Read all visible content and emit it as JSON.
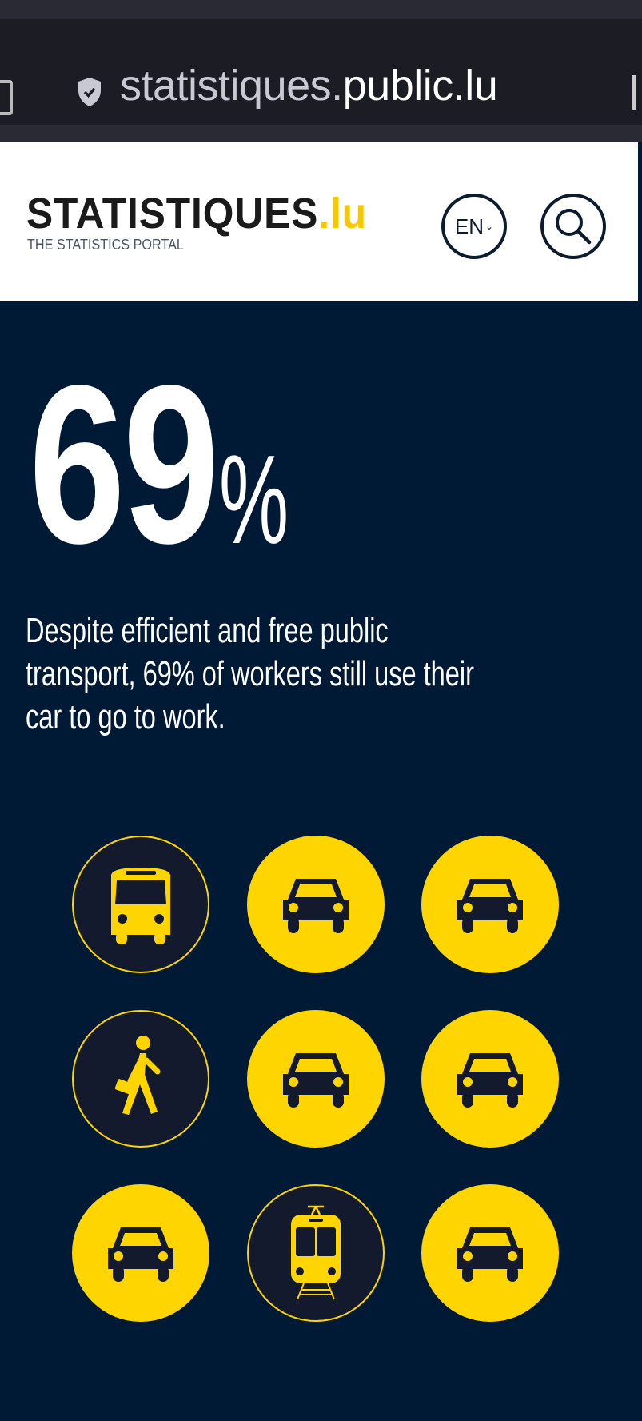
{
  "browser": {
    "url_domain": "statistiques.",
    "url_rest": "public.lu"
  },
  "header": {
    "logo_text": "STATISTIQUES",
    "logo_suffix": ".lu",
    "tagline": "THE STATISTICS PORTAL",
    "language": "EN",
    "search_icon": "magnifier-icon"
  },
  "main": {
    "stat_value": "69",
    "stat_unit": "%",
    "description": "Despite efficient and free public transport, 69% of workers still use their car to go to work.",
    "icons": [
      "bus",
      "car",
      "car",
      "walking",
      "car",
      "car",
      "car",
      "tram",
      "car"
    ]
  },
  "colors": {
    "background": "#001a36",
    "accent": "#ffd500",
    "header_bg": "#ffffff"
  }
}
